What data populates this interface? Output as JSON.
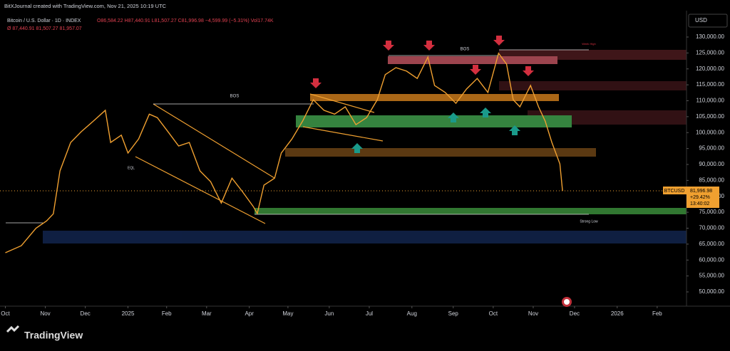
{
  "header": {
    "credit": "BitXJournal created with TradingView.com, Nov 21, 2025 10:19 UTC",
    "symbol": "Bitcoin / U.S. Dollar · 1D · INDEX",
    "ohlc": "O86,584.22 H87,440.91 L81,507.27 C81,996.98 −4,599.99 (−5.31%) Vol17.74K",
    "indicator": "Ø 87,440.91 81,507.27 81,957.07",
    "currency": "USD"
  },
  "price_tag": {
    "symbol": "BTCUSD",
    "price": "81,996.98",
    "change": "+29.42%",
    "countdown": "13:40:02"
  },
  "annotations": {
    "bos_1": "BOS",
    "bos_2": "BOS",
    "eql": "EQL",
    "strong_low": "Strong Low",
    "week_high": "Week High"
  },
  "footer": {
    "brand": "TradingView"
  },
  "chart_data": {
    "type": "line",
    "xlim": [
      0,
      515
    ],
    "xticks": [
      {
        "value": 4,
        "label": "Oct"
      },
      {
        "value": 34,
        "label": "Nov"
      },
      {
        "value": 64,
        "label": "Dec"
      },
      {
        "value": 96,
        "label": "2025"
      },
      {
        "value": 125,
        "label": "Feb"
      },
      {
        "value": 155,
        "label": "Mar"
      },
      {
        "value": 187,
        "label": "Apr"
      },
      {
        "value": 216,
        "label": "May"
      },
      {
        "value": 247,
        "label": "Jun"
      },
      {
        "value": 277,
        "label": "Jul"
      },
      {
        "value": 309,
        "label": "Aug"
      },
      {
        "value": 340,
        "label": "Sep"
      },
      {
        "value": 370,
        "label": "Oct"
      },
      {
        "value": 400,
        "label": "Nov"
      },
      {
        "value": 431,
        "label": "Dec"
      },
      {
        "value": 463,
        "label": "2026"
      },
      {
        "value": 493,
        "label": "Feb"
      }
    ],
    "ylim": [
      45530,
      138270
    ],
    "yticks": [
      {
        "value": 50000,
        "label": "50,000.00"
      },
      {
        "value": 55000,
        "label": "55,000.00"
      },
      {
        "value": 60000,
        "label": "60,000.00"
      },
      {
        "value": 65000,
        "label": "65,000.00"
      },
      {
        "value": 70000,
        "label": "70,000.00"
      },
      {
        "value": 75000,
        "label": "75,000.00"
      },
      {
        "value": 80000,
        "label": "80,000.00"
      },
      {
        "value": 85000,
        "label": "85,000.00"
      },
      {
        "value": 90000,
        "label": "90,000.00"
      },
      {
        "value": 95000,
        "label": "95,000.00"
      },
      {
        "value": 100000,
        "label": "100,000.00"
      },
      {
        "value": 105000,
        "label": "105,000.00"
      },
      {
        "value": 110000,
        "label": "110,000.00"
      },
      {
        "value": 115000,
        "label": "115,000.00"
      },
      {
        "value": 120000,
        "label": "120,000.00"
      },
      {
        "value": 125000,
        "label": "125,000.00"
      },
      {
        "value": 130000,
        "label": "130,000.00"
      }
    ],
    "series": [
      {
        "color": "#f0a030",
        "x": [
          4,
          16,
          27,
          35,
          40,
          45,
          53,
          61,
          70,
          79,
          83,
          91,
          96,
          104,
          112,
          118,
          126,
          134,
          142,
          150,
          158,
          166,
          174,
          182,
          190,
          193,
          198,
          206,
          211,
          219,
          227,
          235,
          243,
          251,
          259,
          267,
          275,
          283,
          289,
          297,
          305,
          313,
          321,
          326,
          334,
          342,
          350,
          358,
          366,
          374,
          380,
          385,
          390,
          398,
          404,
          409,
          414,
          420,
          422
        ],
        "values": [
          62300,
          64500,
          70000,
          72300,
          74500,
          88000,
          96900,
          100300,
          103600,
          107000,
          96900,
          99200,
          93600,
          98000,
          105800,
          104700,
          100300,
          95800,
          96900,
          88000,
          84600,
          77900,
          85700,
          81400,
          76800,
          74600,
          83500,
          85700,
          93600,
          98000,
          103600,
          110300,
          107000,
          105800,
          108100,
          102500,
          104700,
          110300,
          118200,
          120400,
          119300,
          117000,
          123700,
          114800,
          112600,
          109200,
          113700,
          117000,
          112600,
          124900,
          121500,
          110300,
          108100,
          114800,
          108100,
          103600,
          96900,
          90200,
          81700
        ]
      }
    ]
  }
}
